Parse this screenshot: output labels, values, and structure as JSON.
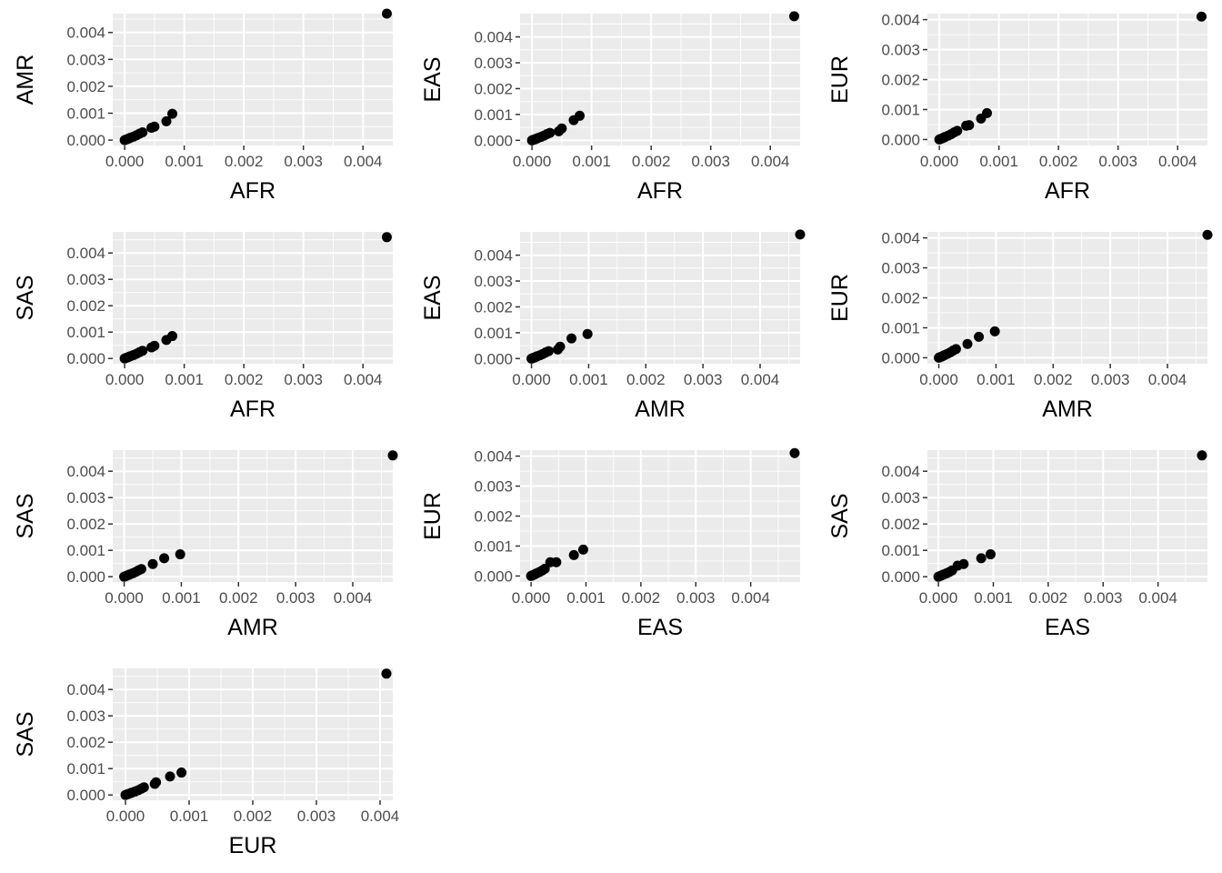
{
  "figure": {
    "background": "#ffffff",
    "panel_background": "#ebebeb",
    "gridline_color": "#ffffff",
    "point_color": "#000000",
    "layout": "3 columns x 4 rows, last row has a single panel"
  },
  "chart_data": [
    {
      "type": "scatter",
      "xlabel": "AFR",
      "ylabel": "AMR",
      "xlim": [
        -0.0002,
        0.0045
      ],
      "ylim": [
        -0.0002,
        0.0047
      ],
      "xticks": [
        "0.000",
        "0.001",
        "0.002",
        "0.003",
        "0.004"
      ],
      "yticks": [
        "0.000",
        "0.001",
        "0.002",
        "0.003",
        "0.004"
      ],
      "grid": true,
      "points": [
        [
          0.0,
          0.0
        ],
        [
          2e-05,
          2e-05
        ],
        [
          5e-05,
          4e-05
        ],
        [
          8e-05,
          7e-05
        ],
        [
          0.0001,
          9e-05
        ],
        [
          0.00015,
          0.00013
        ],
        [
          0.0002,
          0.00018
        ],
        [
          0.00025,
          0.00024
        ],
        [
          0.0003,
          0.00029
        ],
        [
          0.00045,
          0.00046
        ],
        [
          0.0005,
          0.0005
        ],
        [
          0.0007,
          0.0007
        ],
        [
          0.0008,
          0.00098
        ],
        [
          0.0044,
          0.0047
        ]
      ]
    },
    {
      "type": "scatter",
      "xlabel": "AFR",
      "ylabel": "EAS",
      "xlim": [
        -0.0002,
        0.0045
      ],
      "ylim": [
        -0.0002,
        0.0049
      ],
      "xticks": [
        "0.000",
        "0.001",
        "0.002",
        "0.003",
        "0.004"
      ],
      "yticks": [
        "0.000",
        "0.001",
        "0.002",
        "0.003",
        "0.004"
      ],
      "grid": true,
      "points": [
        [
          0.0,
          0.0
        ],
        [
          2e-05,
          2e-05
        ],
        [
          5e-05,
          4e-05
        ],
        [
          8e-05,
          7e-05
        ],
        [
          0.0001,
          9e-05
        ],
        [
          0.00015,
          0.00013
        ],
        [
          0.0002,
          0.00018
        ],
        [
          0.00025,
          0.00024
        ],
        [
          0.0003,
          0.00029
        ],
        [
          0.00045,
          0.00035
        ],
        [
          0.0005,
          0.00046
        ],
        [
          0.0007,
          0.00078
        ],
        [
          0.0008,
          0.00095
        ],
        [
          0.0044,
          0.0048
        ]
      ]
    },
    {
      "type": "scatter",
      "xlabel": "AFR",
      "ylabel": "EUR",
      "xlim": [
        -0.0002,
        0.0045
      ],
      "ylim": [
        -0.0002,
        0.0042
      ],
      "xticks": [
        "0.000",
        "0.001",
        "0.002",
        "0.003",
        "0.004"
      ],
      "yticks": [
        "0.000",
        "0.001",
        "0.002",
        "0.003",
        "0.004"
      ],
      "grid": true,
      "points": [
        [
          0.0,
          0.0
        ],
        [
          2e-05,
          2e-05
        ],
        [
          5e-05,
          4e-05
        ],
        [
          8e-05,
          7e-05
        ],
        [
          0.0001,
          9e-05
        ],
        [
          0.00015,
          0.00013
        ],
        [
          0.0002,
          0.00018
        ],
        [
          0.00025,
          0.00024
        ],
        [
          0.0003,
          0.00029
        ],
        [
          0.00045,
          0.00046
        ],
        [
          0.0005,
          0.00048
        ],
        [
          0.0007,
          0.0007
        ],
        [
          0.0008,
          0.00088
        ],
        [
          0.0044,
          0.0041
        ]
      ]
    },
    {
      "type": "scatter",
      "xlabel": "AFR",
      "ylabel": "SAS",
      "xlim": [
        -0.0002,
        0.0045
      ],
      "ylim": [
        -0.0002,
        0.0048
      ],
      "xticks": [
        "0.000",
        "0.001",
        "0.002",
        "0.003",
        "0.004"
      ],
      "yticks": [
        "0.000",
        "0.001",
        "0.002",
        "0.003",
        "0.004"
      ],
      "grid": true,
      "points": [
        [
          0.0,
          0.0
        ],
        [
          2e-05,
          2e-05
        ],
        [
          5e-05,
          4e-05
        ],
        [
          8e-05,
          7e-05
        ],
        [
          0.0001,
          9e-05
        ],
        [
          0.00015,
          0.00013
        ],
        [
          0.0002,
          0.00018
        ],
        [
          0.00025,
          0.00024
        ],
        [
          0.0003,
          0.00029
        ],
        [
          0.00045,
          0.00042
        ],
        [
          0.0005,
          0.00048
        ],
        [
          0.0007,
          0.0007
        ],
        [
          0.0008,
          0.00085
        ],
        [
          0.0044,
          0.0046
        ]
      ]
    },
    {
      "type": "scatter",
      "xlabel": "AMR",
      "ylabel": "EAS",
      "xlim": [
        -0.0002,
        0.0047
      ],
      "ylim": [
        -0.0002,
        0.0049
      ],
      "xticks": [
        "0.000",
        "0.001",
        "0.002",
        "0.003",
        "0.004"
      ],
      "yticks": [
        "0.000",
        "0.001",
        "0.002",
        "0.003",
        "0.004"
      ],
      "grid": true,
      "points": [
        [
          0.0,
          0.0
        ],
        [
          2e-05,
          2e-05
        ],
        [
          5e-05,
          4e-05
        ],
        [
          8e-05,
          7e-05
        ],
        [
          0.0001,
          9e-05
        ],
        [
          0.00015,
          0.00013
        ],
        [
          0.0002,
          0.00018
        ],
        [
          0.00025,
          0.00024
        ],
        [
          0.0003,
          0.00029
        ],
        [
          0.00046,
          0.00035
        ],
        [
          0.0005,
          0.00046
        ],
        [
          0.0007,
          0.00078
        ],
        [
          0.00098,
          0.00095
        ],
        [
          0.0047,
          0.0048
        ]
      ]
    },
    {
      "type": "scatter",
      "xlabel": "AMR",
      "ylabel": "EUR",
      "xlim": [
        -0.0002,
        0.0047
      ],
      "ylim": [
        -0.0002,
        0.0042
      ],
      "xticks": [
        "0.000",
        "0.001",
        "0.002",
        "0.003",
        "0.004"
      ],
      "yticks": [
        "0.000",
        "0.001",
        "0.002",
        "0.003",
        "0.004"
      ],
      "grid": true,
      "points": [
        [
          0.0,
          0.0
        ],
        [
          2e-05,
          2e-05
        ],
        [
          5e-05,
          4e-05
        ],
        [
          8e-05,
          7e-05
        ],
        [
          0.0001,
          9e-05
        ],
        [
          0.00015,
          0.00013
        ],
        [
          0.0002,
          0.00018
        ],
        [
          0.00025,
          0.00024
        ],
        [
          0.0003,
          0.00029
        ],
        [
          0.0005,
          0.00046
        ],
        [
          0.0007,
          0.0007
        ],
        [
          0.00098,
          0.00088
        ],
        [
          0.0047,
          0.0041
        ]
      ]
    },
    {
      "type": "scatter",
      "xlabel": "AMR",
      "ylabel": "SAS",
      "xlim": [
        -0.0002,
        0.0047
      ],
      "ylim": [
        -0.0002,
        0.0048
      ],
      "xticks": [
        "0.000",
        "0.001",
        "0.002",
        "0.003",
        "0.004"
      ],
      "yticks": [
        "0.000",
        "0.001",
        "0.002",
        "0.003",
        "0.004"
      ],
      "grid": true,
      "points": [
        [
          0.0,
          0.0
        ],
        [
          2e-05,
          2e-05
        ],
        [
          5e-05,
          4e-05
        ],
        [
          8e-05,
          7e-05
        ],
        [
          0.0001,
          9e-05
        ],
        [
          0.00015,
          0.00013
        ],
        [
          0.0002,
          0.00018
        ],
        [
          0.00025,
          0.00024
        ],
        [
          0.0003,
          0.00029
        ],
        [
          0.0005,
          0.00048
        ],
        [
          0.0007,
          0.0007
        ],
        [
          0.00098,
          0.00085
        ],
        [
          0.0047,
          0.0046
        ]
      ]
    },
    {
      "type": "scatter",
      "xlabel": "EAS",
      "ylabel": "EUR",
      "xlim": [
        -0.0002,
        0.0049
      ],
      "ylim": [
        -0.0002,
        0.0042
      ],
      "xticks": [
        "0.000",
        "0.001",
        "0.002",
        "0.003",
        "0.004"
      ],
      "yticks": [
        "0.000",
        "0.001",
        "0.002",
        "0.003",
        "0.004"
      ],
      "grid": true,
      "points": [
        [
          0.0,
          0.0
        ],
        [
          2e-05,
          2e-05
        ],
        [
          5e-05,
          4e-05
        ],
        [
          8e-05,
          7e-05
        ],
        [
          0.0001,
          9e-05
        ],
        [
          0.00015,
          0.00013
        ],
        [
          0.0002,
          0.00018
        ],
        [
          0.00025,
          0.00024
        ],
        [
          0.00035,
          0.00046
        ],
        [
          0.00046,
          0.00046
        ],
        [
          0.00078,
          0.0007
        ],
        [
          0.00095,
          0.00088
        ],
        [
          0.0048,
          0.0041
        ]
      ]
    },
    {
      "type": "scatter",
      "xlabel": "EAS",
      "ylabel": "SAS",
      "xlim": [
        -0.0002,
        0.0049
      ],
      "ylim": [
        -0.0002,
        0.0048
      ],
      "xticks": [
        "0.000",
        "0.001",
        "0.002",
        "0.003",
        "0.004"
      ],
      "yticks": [
        "0.000",
        "0.001",
        "0.002",
        "0.003",
        "0.004"
      ],
      "grid": true,
      "points": [
        [
          0.0,
          0.0
        ],
        [
          2e-05,
          2e-05
        ],
        [
          5e-05,
          4e-05
        ],
        [
          8e-05,
          7e-05
        ],
        [
          0.0001,
          9e-05
        ],
        [
          0.00015,
          0.00013
        ],
        [
          0.0002,
          0.00018
        ],
        [
          0.00025,
          0.00024
        ],
        [
          0.00035,
          0.00042
        ],
        [
          0.00046,
          0.00048
        ],
        [
          0.00078,
          0.0007
        ],
        [
          0.00095,
          0.00085
        ],
        [
          0.0048,
          0.0046
        ]
      ]
    },
    {
      "type": "scatter",
      "xlabel": "EUR",
      "ylabel": "SAS",
      "xlim": [
        -0.0002,
        0.0042
      ],
      "ylim": [
        -0.0002,
        0.0048
      ],
      "xticks": [
        "0.000",
        "0.001",
        "0.002",
        "0.003",
        "0.004"
      ],
      "yticks": [
        "0.000",
        "0.001",
        "0.002",
        "0.003",
        "0.004"
      ],
      "grid": true,
      "points": [
        [
          0.0,
          0.0
        ],
        [
          2e-05,
          2e-05
        ],
        [
          5e-05,
          4e-05
        ],
        [
          8e-05,
          7e-05
        ],
        [
          0.0001,
          9e-05
        ],
        [
          0.00015,
          0.00013
        ],
        [
          0.0002,
          0.00018
        ],
        [
          0.00025,
          0.00024
        ],
        [
          0.00029,
          0.00029
        ],
        [
          0.00046,
          0.00042
        ],
        [
          0.00048,
          0.00048
        ],
        [
          0.0007,
          0.0007
        ],
        [
          0.00088,
          0.00085
        ],
        [
          0.0041,
          0.0046
        ]
      ]
    }
  ]
}
